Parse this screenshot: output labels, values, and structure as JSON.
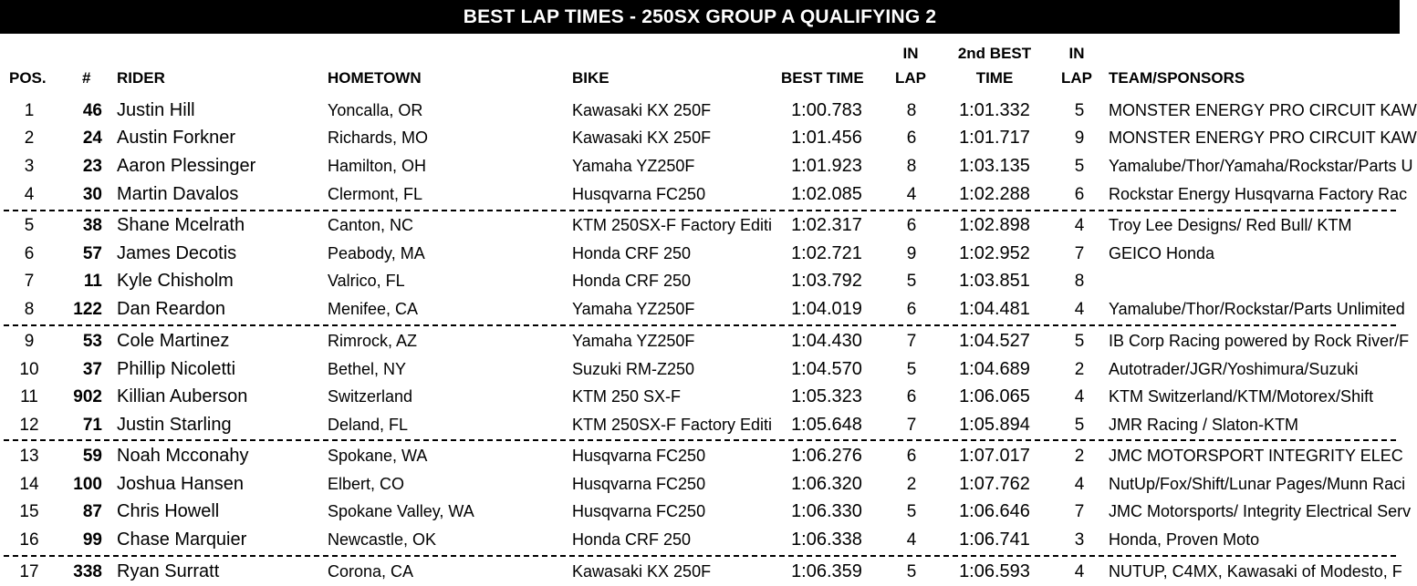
{
  "title": "BEST LAP TIMES - 250SX GROUP A QUALIFYING 2",
  "headers": {
    "pos": "POS.",
    "num": "#",
    "rider": "RIDER",
    "hometown": "HOMETOWN",
    "bike": "BIKE",
    "best_time": "BEST TIME",
    "in_lap_1": "IN",
    "in_lap_2": "LAP",
    "second_best_1": "2nd BEST",
    "second_best_2": "TIME",
    "in_lap2_1": "IN",
    "in_lap2_2": "LAP",
    "team": "TEAM/SPONSORS"
  },
  "rows": [
    {
      "pos": "1",
      "num": "46",
      "rider": "Justin Hill",
      "hometown": "Yoncalla, OR",
      "bike": "Kawasaki KX 250F",
      "best": "1:00.783",
      "lap": "8",
      "second": "1:01.332",
      "lap2": "5",
      "team": "MONSTER ENERGY PRO CIRCUIT KAW"
    },
    {
      "pos": "2",
      "num": "24",
      "rider": "Austin Forkner",
      "hometown": "Richards, MO",
      "bike": "Kawasaki KX 250F",
      "best": "1:01.456",
      "lap": "6",
      "second": "1:01.717",
      "lap2": "9",
      "team": "MONSTER ENERGY PRO CIRCUIT KAW"
    },
    {
      "pos": "3",
      "num": "23",
      "rider": "Aaron Plessinger",
      "hometown": "Hamilton, OH",
      "bike": "Yamaha YZ250F",
      "best": "1:01.923",
      "lap": "8",
      "second": "1:03.135",
      "lap2": "5",
      "team": "Yamalube/Thor/Yamaha/Rockstar/Parts U"
    },
    {
      "pos": "4",
      "num": "30",
      "rider": "Martin Davalos",
      "hometown": "Clermont, FL",
      "bike": "Husqvarna FC250",
      "best": "1:02.085",
      "lap": "4",
      "second": "1:02.288",
      "lap2": "6",
      "team": "Rockstar Energy Husqvarna Factory Rac"
    },
    {
      "pos": "5",
      "num": "38",
      "rider": "Shane Mcelrath",
      "hometown": "Canton, NC",
      "bike": "KTM 250SX-F Factory Editi",
      "best": "1:02.317",
      "lap": "6",
      "second": "1:02.898",
      "lap2": "4",
      "team": "Troy Lee Designs/ Red Bull/ KTM"
    },
    {
      "pos": "6",
      "num": "57",
      "rider": "James Decotis",
      "hometown": "Peabody, MA",
      "bike": "Honda CRF 250",
      "best": "1:02.721",
      "lap": "9",
      "second": "1:02.952",
      "lap2": "7",
      "team": "GEICO Honda"
    },
    {
      "pos": "7",
      "num": "11",
      "rider": "Kyle Chisholm",
      "hometown": "Valrico, FL",
      "bike": "Honda CRF 250",
      "best": "1:03.792",
      "lap": "5",
      "second": "1:03.851",
      "lap2": "8",
      "team": ""
    },
    {
      "pos": "8",
      "num": "122",
      "rider": "Dan Reardon",
      "hometown": "Menifee, CA",
      "bike": "Yamaha YZ250F",
      "best": "1:04.019",
      "lap": "6",
      "second": "1:04.481",
      "lap2": "4",
      "team": "Yamalube/Thor/Rockstar/Parts Unlimited"
    },
    {
      "pos": "9",
      "num": "53",
      "rider": "Cole Martinez",
      "hometown": "Rimrock, AZ",
      "bike": "Yamaha YZ250F",
      "best": "1:04.430",
      "lap": "7",
      "second": "1:04.527",
      "lap2": "5",
      "team": "IB Corp Racing powered by Rock River/F"
    },
    {
      "pos": "10",
      "num": "37",
      "rider": "Phillip Nicoletti",
      "hometown": "Bethel, NY",
      "bike": "Suzuki RM-Z250",
      "best": "1:04.570",
      "lap": "5",
      "second": "1:04.689",
      "lap2": "2",
      "team": "Autotrader/JGR/Yoshimura/Suzuki"
    },
    {
      "pos": "11",
      "num": "902",
      "rider": "Killian Auberson",
      "hometown": "Switzerland",
      "bike": "KTM 250 SX-F",
      "best": "1:05.323",
      "lap": "6",
      "second": "1:06.065",
      "lap2": "4",
      "team": "KTM Switzerland/KTM/Motorex/Shift"
    },
    {
      "pos": "12",
      "num": "71",
      "rider": "Justin Starling",
      "hometown": "Deland, FL",
      "bike": "KTM 250SX-F Factory Editi",
      "best": "1:05.648",
      "lap": "7",
      "second": "1:05.894",
      "lap2": "5",
      "team": "JMR Racing / Slaton-KTM"
    },
    {
      "pos": "13",
      "num": "59",
      "rider": "Noah Mcconahy",
      "hometown": "Spokane, WA",
      "bike": "Husqvarna FC250",
      "best": "1:06.276",
      "lap": "6",
      "second": "1:07.017",
      "lap2": "2",
      "team": "JMC MOTORSPORT INTEGRITY ELEC"
    },
    {
      "pos": "14",
      "num": "100",
      "rider": "Joshua Hansen",
      "hometown": "Elbert, CO",
      "bike": "Husqvarna FC250",
      "best": "1:06.320",
      "lap": "2",
      "second": "1:07.762",
      "lap2": "4",
      "team": "NutUp/Fox/Shift/Lunar Pages/Munn Raci"
    },
    {
      "pos": "15",
      "num": "87",
      "rider": "Chris Howell",
      "hometown": "Spokane Valley, WA",
      "bike": "Husqvarna FC250",
      "best": "1:06.330",
      "lap": "5",
      "second": "1:06.646",
      "lap2": "7",
      "team": "JMC Motorsports/ Integrity Electrical Serv"
    },
    {
      "pos": "16",
      "num": "99",
      "rider": "Chase Marquier",
      "hometown": "Newcastle, OK",
      "bike": "Honda CRF 250",
      "best": "1:06.338",
      "lap": "4",
      "second": "1:06.741",
      "lap2": "3",
      "team": "Honda, Proven Moto"
    },
    {
      "pos": "17",
      "num": "338",
      "rider": "Ryan Surratt",
      "hometown": "Corona, CA",
      "bike": "Kawasaki KX 250F",
      "best": "1:06.359",
      "lap": "5",
      "second": "1:06.593",
      "lap2": "4",
      "team": "NUTUP, C4MX, Kawasaki of Modesto, F"
    }
  ]
}
